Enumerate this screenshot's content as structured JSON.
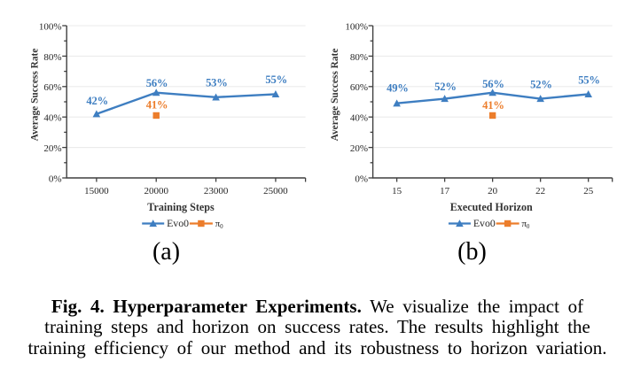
{
  "figure": {
    "caption": {
      "line1_bold": "Fig. 4. Hyperparameter Experiments.",
      "line1_rest": " We visualize the impact of",
      "line2": "training steps and horizon on success rates. The results highlight the",
      "line3": "training efficiency of our method and its robustness to horizon variation."
    }
  },
  "colors": {
    "series_blue": "#3E7EC1",
    "series_orange": "#EC7D2B",
    "gridline": "#EBEBEB",
    "axis": "#3F3F3F",
    "tick_text": "#262626",
    "axis_title_text": "#333333",
    "sublabel_text": "#000000"
  },
  "chart_data": [
    {
      "type": "line",
      "panel_label": "(a)",
      "categories": [
        "15000",
        "20000",
        "23000",
        "25000"
      ],
      "xlabel": "Training Steps",
      "ylabel": "Average Success Rate",
      "ylim": [
        0,
        100
      ],
      "yticks": [
        "0%",
        "20%",
        "40%",
        "60%",
        "80%",
        "100%"
      ],
      "grid": true,
      "legend_position": "bottom",
      "series": [
        {
          "name": "Evo0",
          "marker": "triangle",
          "color": "blue",
          "values": [
            42,
            56,
            53,
            55
          ],
          "labels": [
            "42%",
            "56%",
            "53%",
            "55%"
          ]
        },
        {
          "name_base": "π",
          "name_sub": "0",
          "marker": "square",
          "color": "orange",
          "values": [
            null,
            41,
            null,
            null
          ],
          "labels": [
            null,
            "41%",
            null,
            null
          ]
        }
      ]
    },
    {
      "type": "line",
      "panel_label": "(b)",
      "categories": [
        "15",
        "17",
        "20",
        "22",
        "25"
      ],
      "xlabel": "Executed Horizon",
      "ylabel": "Average Success Rate",
      "ylim": [
        0,
        100
      ],
      "yticks": [
        "0%",
        "20%",
        "40%",
        "60%",
        "80%",
        "100%"
      ],
      "grid": true,
      "legend_position": "bottom",
      "series": [
        {
          "name": "Evo0",
          "marker": "triangle",
          "color": "blue",
          "values": [
            49,
            52,
            56,
            52,
            55
          ],
          "labels": [
            "49%",
            "52%",
            "56%",
            "52%",
            "55%"
          ]
        },
        {
          "name_base": "π",
          "name_sub": "0",
          "marker": "square",
          "color": "orange",
          "values": [
            null,
            null,
            41,
            null,
            null
          ],
          "labels": [
            null,
            null,
            "41%",
            null,
            null
          ]
        }
      ]
    }
  ]
}
